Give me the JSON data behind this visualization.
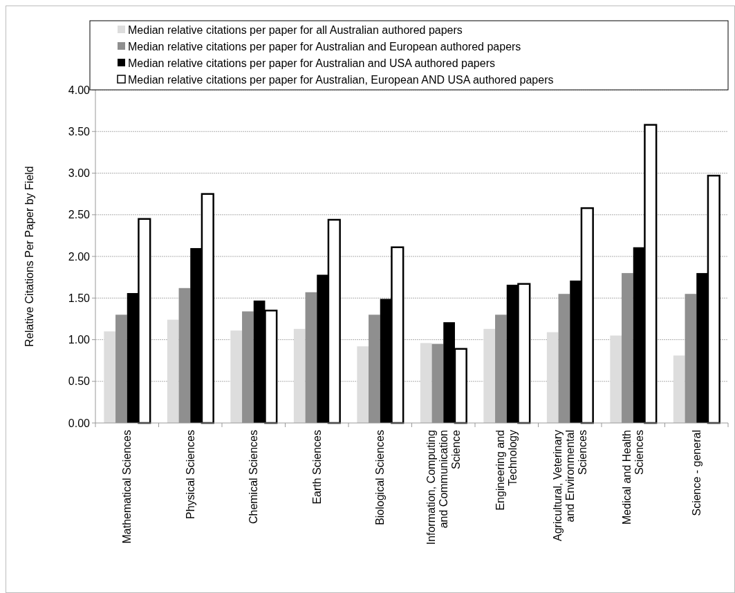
{
  "chart_data": {
    "type": "bar",
    "ylabel": "Relative Citations Per Paper by Field",
    "categories": [
      "Mathematical Sciences",
      "Physical Sciences",
      "Chemical Sciences",
      "Earth Sciences",
      "Biological Sciences",
      "Information, Computing and Communication Science",
      "Engineering and Technology",
      "Agricultural, Veterinary and Environmental Sciences",
      "Medical and Health Sciences",
      "Science - general"
    ],
    "series": [
      {
        "name": "Median relative citations per paper for all Australian authored papers",
        "color": "#dddddd",
        "values": [
          1.1,
          1.24,
          1.11,
          1.13,
          0.92,
          0.96,
          1.13,
          1.09,
          1.05,
          0.81
        ]
      },
      {
        "name": "Median relative  citations per paper for Australian and European authored papers",
        "color": "#8f8f8f",
        "values": [
          1.3,
          1.62,
          1.34,
          1.57,
          1.3,
          0.95,
          1.3,
          1.55,
          1.8,
          1.55
        ]
      },
      {
        "name": "Median  relative citations per paper for Australian and USA authored papers",
        "color": "#000000",
        "values": [
          1.56,
          2.1,
          1.47,
          1.78,
          1.49,
          1.21,
          1.66,
          1.71,
          2.11,
          1.8
        ]
      },
      {
        "name": "Median  relative citations per paper for Australian, European AND USA authored papers",
        "color": "#ffffff",
        "values": [
          2.45,
          2.75,
          1.35,
          2.44,
          2.11,
          0.89,
          1.67,
          2.58,
          3.58,
          2.97
        ]
      }
    ],
    "ylim": [
      0,
      4
    ],
    "yticks": [
      {
        "value": 0,
        "label": "0.00"
      },
      {
        "value": 0.5,
        "label": "0.50"
      },
      {
        "value": 1,
        "label": "1.00"
      },
      {
        "value": 1.5,
        "label": "1.50"
      },
      {
        "value": 2,
        "label": "2.00"
      },
      {
        "value": 2.5,
        "label": "2.50"
      },
      {
        "value": 3,
        "label": "3.00"
      },
      {
        "value": 3.5,
        "label": "3.50"
      },
      {
        "value": 4,
        "label": "4.00"
      }
    ],
    "grid": "y",
    "legend": "top"
  }
}
